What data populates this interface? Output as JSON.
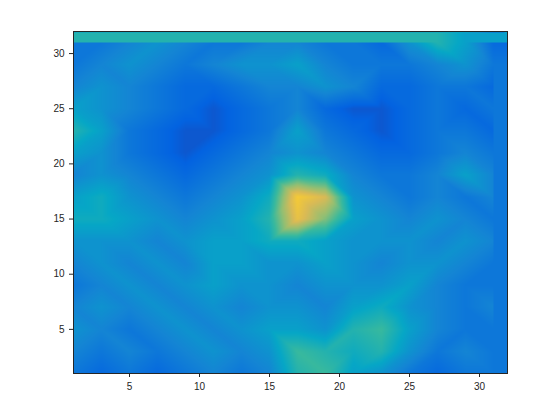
{
  "chart_data": {
    "type": "heatmap",
    "x": [
      1,
      3,
      5,
      7,
      9,
      11,
      13,
      15,
      17,
      19,
      21,
      23,
      25,
      27,
      29,
      31
    ],
    "y": [
      1,
      3,
      5,
      7,
      9,
      11,
      13,
      15,
      17,
      19,
      21,
      23,
      25,
      27,
      29,
      31
    ],
    "z": [
      [
        0.2,
        0.15,
        0.2,
        0.15,
        0.2,
        0.25,
        0.2,
        0.25,
        0.45,
        0.5,
        0.35,
        0.3,
        0.2,
        0.15,
        0.2,
        0.2
      ],
      [
        0.25,
        0.2,
        0.25,
        0.2,
        0.25,
        0.3,
        0.25,
        0.3,
        0.5,
        0.45,
        0.4,
        0.45,
        0.3,
        0.2,
        0.25,
        0.2
      ],
      [
        0.3,
        0.25,
        0.2,
        0.25,
        0.3,
        0.25,
        0.3,
        0.35,
        0.35,
        0.3,
        0.45,
        0.5,
        0.35,
        0.25,
        0.2,
        0.2
      ],
      [
        0.25,
        0.3,
        0.25,
        0.3,
        0.25,
        0.3,
        0.25,
        0.3,
        0.3,
        0.25,
        0.35,
        0.4,
        0.3,
        0.25,
        0.2,
        0.25
      ],
      [
        0.2,
        0.25,
        0.3,
        0.25,
        0.3,
        0.35,
        0.3,
        0.3,
        0.25,
        0.3,
        0.3,
        0.3,
        0.35,
        0.25,
        0.2,
        0.2
      ],
      [
        0.25,
        0.3,
        0.25,
        0.3,
        0.25,
        0.35,
        0.35,
        0.3,
        0.3,
        0.35,
        0.3,
        0.25,
        0.3,
        0.3,
        0.25,
        0.2
      ],
      [
        0.3,
        0.3,
        0.3,
        0.25,
        0.3,
        0.35,
        0.35,
        0.4,
        0.4,
        0.35,
        0.3,
        0.3,
        0.3,
        0.25,
        0.3,
        0.25
      ],
      [
        0.4,
        0.4,
        0.35,
        0.3,
        0.25,
        0.3,
        0.35,
        0.45,
        0.8,
        0.6,
        0.35,
        0.3,
        0.25,
        0.3,
        0.25,
        0.2
      ],
      [
        0.35,
        0.4,
        0.3,
        0.25,
        0.2,
        0.25,
        0.3,
        0.4,
        0.85,
        0.75,
        0.3,
        0.25,
        0.2,
        0.25,
        0.2,
        0.25
      ],
      [
        0.25,
        0.3,
        0.25,
        0.2,
        0.15,
        0.2,
        0.25,
        0.3,
        0.45,
        0.4,
        0.25,
        0.2,
        0.2,
        0.25,
        0.35,
        0.25
      ],
      [
        0.35,
        0.3,
        0.2,
        0.15,
        0.1,
        0.15,
        0.2,
        0.25,
        0.3,
        0.25,
        0.2,
        0.15,
        0.15,
        0.2,
        0.25,
        0.2
      ],
      [
        0.45,
        0.35,
        0.2,
        0.15,
        0.1,
        0.1,
        0.15,
        0.2,
        0.35,
        0.2,
        0.15,
        0.1,
        0.15,
        0.2,
        0.2,
        0.15
      ],
      [
        0.35,
        0.3,
        0.25,
        0.2,
        0.15,
        0.1,
        0.15,
        0.2,
        0.25,
        0.15,
        0.1,
        0.1,
        0.15,
        0.2,
        0.15,
        0.2
      ],
      [
        0.25,
        0.3,
        0.25,
        0.2,
        0.15,
        0.15,
        0.2,
        0.25,
        0.25,
        0.3,
        0.25,
        0.15,
        0.15,
        0.2,
        0.2,
        0.15
      ],
      [
        0.2,
        0.25,
        0.3,
        0.25,
        0.2,
        0.25,
        0.3,
        0.3,
        0.35,
        0.25,
        0.2,
        0.2,
        0.2,
        0.25,
        0.3,
        0.2
      ],
      [
        0.2,
        0.2,
        0.25,
        0.3,
        0.25,
        0.2,
        0.2,
        0.25,
        0.25,
        0.2,
        0.2,
        0.15,
        0.3,
        0.45,
        0.35,
        0.15
      ]
    ],
    "zlim": [
      0,
      1
    ],
    "xlim": [
      1,
      32
    ],
    "ylim": [
      1,
      32
    ],
    "xticks": [
      5,
      10,
      15,
      20,
      25,
      30
    ],
    "yticks": [
      5,
      10,
      15,
      20,
      25,
      30
    ]
  }
}
